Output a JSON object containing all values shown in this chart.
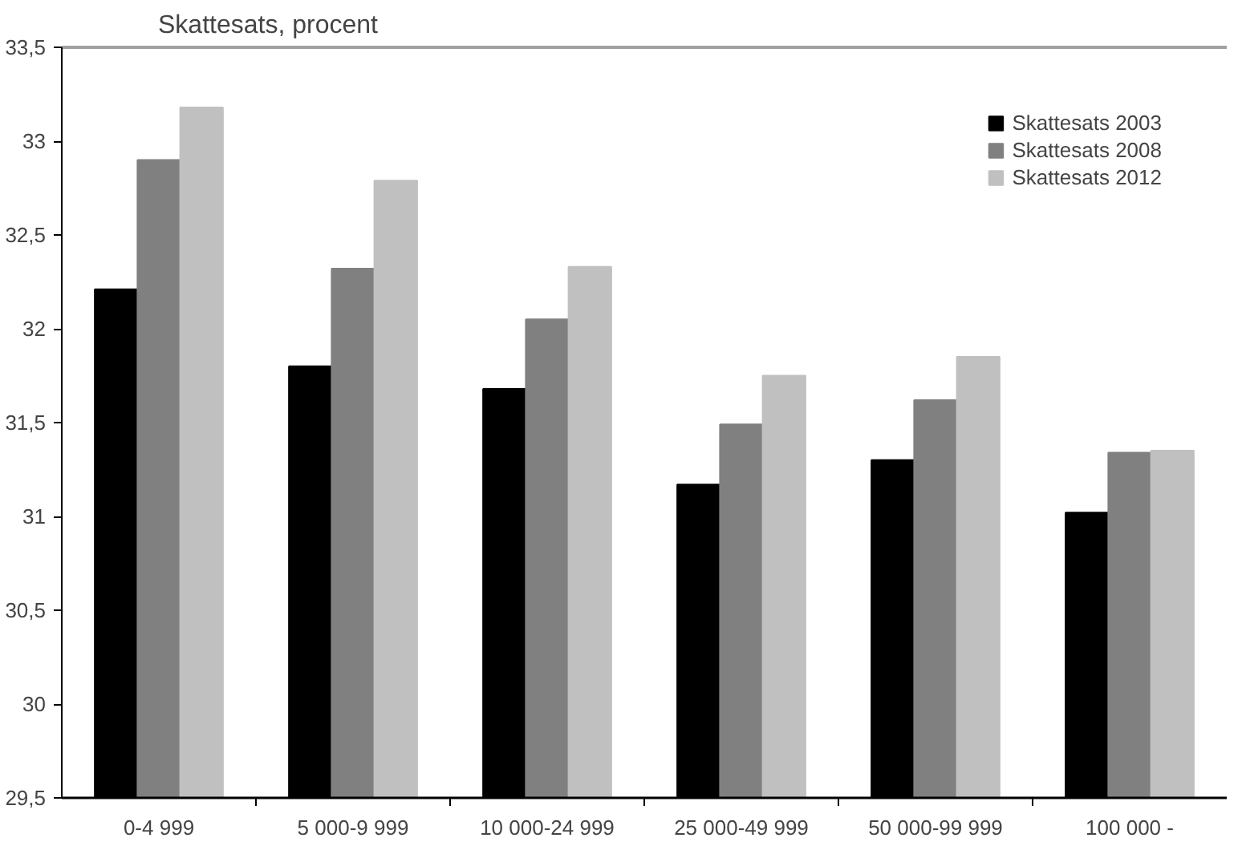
{
  "chart_data": {
    "type": "bar",
    "title": "Skattesats, procent",
    "categories": [
      "0-4 999",
      "5 000-9 999",
      "10 000-24 999",
      "25 000-49 999",
      "50 000-99 999",
      "100 000 -"
    ],
    "series": [
      {
        "name": "Skattesats 2003",
        "color": "#000000",
        "values": [
          32.21,
          31.8,
          31.68,
          31.17,
          31.3,
          31.02
        ]
      },
      {
        "name": "Skattesats 2008",
        "color": "#808080",
        "values": [
          32.9,
          32.32,
          32.05,
          31.49,
          31.62,
          31.34
        ]
      },
      {
        "name": "Skattesats 2012",
        "color": "#c0c0c0",
        "values": [
          33.18,
          32.79,
          32.33,
          31.75,
          31.85,
          31.35
        ]
      }
    ],
    "ylim": [
      29.5,
      33.5
    ],
    "yticks": [
      {
        "value": 29.5,
        "label": "29,5"
      },
      30,
      {
        "value": 30.5,
        "label": "30,5"
      },
      31,
      {
        "value": 31.5,
        "label": "31,5"
      },
      32,
      {
        "value": 32.5,
        "label": "32,5"
      },
      33,
      {
        "value": 33.5,
        "label": "33,5"
      }
    ],
    "grid": false,
    "legend": "top right"
  }
}
